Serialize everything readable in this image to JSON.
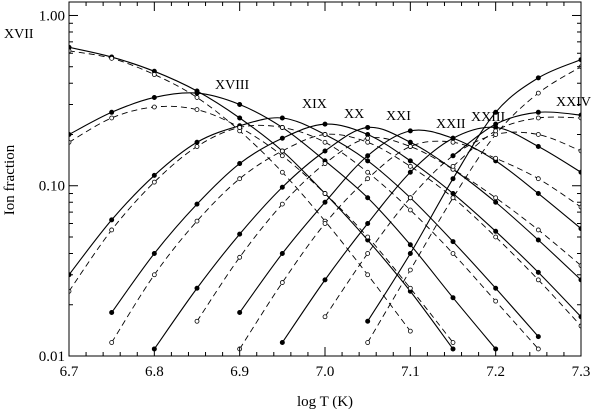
{
  "chart_data": {
    "type": "line",
    "xlabel": "log T (K)",
    "ylabel": "Ion fraction",
    "xlim": [
      6.7,
      7.3
    ],
    "ylim": [
      0.01,
      1.2
    ],
    "yscale": "log",
    "x_ticks": [
      "6.7",
      "6.8",
      "6.9",
      "7.0",
      "7.1",
      "7.2",
      "7.3"
    ],
    "y_ticks": [
      "0.01",
      "0.10",
      "1.00"
    ],
    "y_tick_values": [
      0.01,
      0.1,
      1.0
    ],
    "line_styles": {
      "solid": "filled-circle markers",
      "dashed": "open-circle markers"
    },
    "x": [
      6.7,
      6.75,
      6.8,
      6.85,
      6.9,
      6.95,
      7.0,
      7.05,
      7.1,
      7.15,
      7.2,
      7.25,
      7.3
    ],
    "series": [
      {
        "ion": "XVII",
        "label": "XVII",
        "style": "solid",
        "values": [
          0.65,
          0.57,
          0.47,
          0.36,
          0.25,
          0.16,
          0.09,
          0.048,
          0.024,
          0.011,
          null,
          null,
          null
        ]
      },
      {
        "ion": "XVII",
        "style": "dashed",
        "values": [
          0.62,
          0.56,
          0.45,
          0.33,
          0.21,
          0.12,
          0.062,
          0.03,
          0.014,
          null,
          null,
          null,
          null
        ]
      },
      {
        "ion": "XVIII",
        "label": "XVIII",
        "style": "solid",
        "values": [
          0.2,
          0.27,
          0.33,
          0.35,
          0.3,
          0.22,
          0.14,
          0.085,
          0.045,
          0.022,
          0.011,
          null,
          null
        ]
      },
      {
        "ion": "XVIII",
        "style": "dashed",
        "values": [
          0.18,
          0.25,
          0.29,
          0.28,
          0.22,
          0.15,
          0.09,
          0.05,
          0.025,
          0.012,
          null,
          null,
          null
        ]
      },
      {
        "ion": "XIX",
        "label": "XIX",
        "style": "solid",
        "values": [
          0.03,
          0.063,
          0.115,
          0.18,
          0.225,
          0.25,
          0.2,
          0.14,
          0.085,
          0.047,
          0.025,
          0.013,
          null
        ]
      },
      {
        "ion": "XIX",
        "style": "dashed",
        "values": [
          0.024,
          0.055,
          0.105,
          0.17,
          0.22,
          0.22,
          0.18,
          0.12,
          0.072,
          0.04,
          0.021,
          0.011,
          null
        ]
      },
      {
        "ion": "XX",
        "label": "XX",
        "style": "solid",
        "values": [
          null,
          0.018,
          0.04,
          0.078,
          0.135,
          0.19,
          0.23,
          0.2,
          0.14,
          0.09,
          0.054,
          0.031,
          0.017
        ]
      },
      {
        "ion": "XX",
        "style": "dashed",
        "values": [
          null,
          0.012,
          0.03,
          0.062,
          0.11,
          0.16,
          0.2,
          0.18,
          0.13,
          0.085,
          0.05,
          0.028,
          0.015
        ]
      },
      {
        "ion": "XXI",
        "label": "XXI",
        "style": "solid",
        "values": [
          null,
          null,
          0.011,
          0.025,
          0.052,
          0.098,
          0.16,
          0.22,
          0.18,
          0.125,
          0.08,
          0.048,
          0.028
        ]
      },
      {
        "ion": "XXI",
        "style": "dashed",
        "values": [
          null,
          null,
          null,
          0.016,
          0.038,
          0.078,
          0.135,
          0.19,
          0.17,
          0.125,
          0.085,
          0.055,
          0.034
        ]
      },
      {
        "ion": "XXII",
        "label": "XXII",
        "style": "solid",
        "values": [
          null,
          null,
          null,
          null,
          0.018,
          0.04,
          0.08,
          0.15,
          0.21,
          0.19,
          0.14,
          0.09,
          0.056
        ]
      },
      {
        "ion": "XXII",
        "style": "dashed",
        "values": [
          null,
          null,
          null,
          null,
          0.011,
          0.027,
          0.06,
          0.11,
          0.17,
          0.18,
          0.145,
          0.11,
          0.075
        ]
      },
      {
        "ion": "XXIII",
        "label": "XXIII",
        "style": "solid",
        "values": [
          null,
          null,
          null,
          null,
          null,
          0.012,
          0.028,
          0.06,
          0.12,
          0.19,
          0.22,
          0.17,
          0.12
        ]
      },
      {
        "ion": "XXIII",
        "style": "dashed",
        "values": [
          null,
          null,
          null,
          null,
          null,
          null,
          0.017,
          0.04,
          0.085,
          0.15,
          0.2,
          0.2,
          0.16
        ]
      },
      {
        "ion": "XXIV",
        "label": "XXIV",
        "style": "solid",
        "values": [
          null,
          null,
          null,
          null,
          null,
          null,
          null,
          0.016,
          0.04,
          0.11,
          0.27,
          0.43,
          0.55
        ]
      },
      {
        "ion": "XXIV",
        "style": "dashed",
        "values": [
          null,
          null,
          null,
          null,
          null,
          null,
          null,
          0.012,
          0.032,
          0.085,
          0.2,
          0.35,
          0.5
        ]
      },
      {
        "ion": "XXIV",
        "style": "solid",
        "values": [
          null,
          null,
          null,
          null,
          null,
          null,
          null,
          null,
          null,
          0.15,
          0.23,
          0.27,
          0.26
        ]
      },
      {
        "ion": "XXIV",
        "style": "dashed",
        "values": [
          null,
          null,
          null,
          null,
          null,
          null,
          null,
          null,
          null,
          0.13,
          0.21,
          0.25,
          0.25
        ]
      }
    ]
  }
}
